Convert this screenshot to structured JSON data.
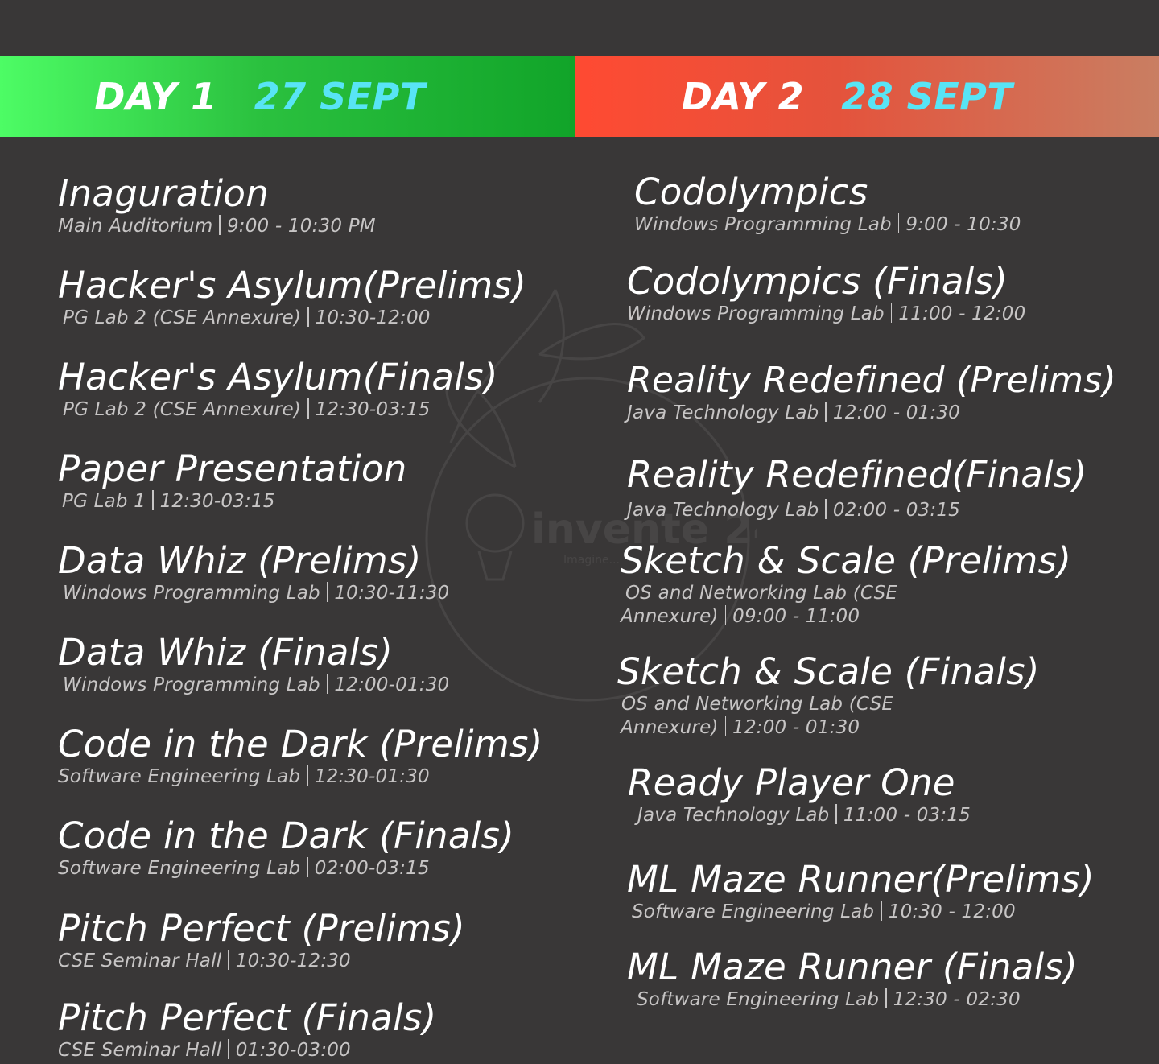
{
  "day1": {
    "day": "DAY 1",
    "date": "27 SEPT",
    "events": [
      {
        "title": "Inaguration",
        "venue": "Main Auditorium",
        "time": "9:00 - 10:30 PM"
      },
      {
        "title": "Hacker's Asylum(Prelims)",
        "venue": "PG Lab 2 (CSE Annexure)",
        "time": "10:30-12:00"
      },
      {
        "title": "Hacker's Asylum(Finals)",
        "venue": "PG Lab 2 (CSE Annexure)",
        "time": "12:30-03:15"
      },
      {
        "title": "Paper Presentation",
        "venue": "PG Lab 1",
        "time": "12:30-03:15"
      },
      {
        "title": "Data Whiz (Prelims)",
        "venue": "Windows Programming Lab",
        "time": "10:30-11:30"
      },
      {
        "title": "Data Whiz (Finals)",
        "venue": "Windows Programming Lab",
        "time": "12:00-01:30"
      },
      {
        "title": "Code in the Dark (Prelims)",
        "venue": "Software Engineering Lab",
        "time": "12:30-01:30"
      },
      {
        "title": "Code in the Dark (Finals)",
        "venue": "Software Engineering Lab",
        "time": "02:00-03:15"
      },
      {
        "title": "Pitch Perfect (Prelims)",
        "venue": "CSE Seminar Hall",
        "time": "10:30-12:30"
      },
      {
        "title": "Pitch Perfect (Finals)",
        "venue": "CSE Seminar Hall",
        "time": "01:30-03:00"
      }
    ]
  },
  "day2": {
    "day": "DAY 2",
    "date": "28 SEPT",
    "events": [
      {
        "title": "Codolympics",
        "venue": "Windows Programming Lab",
        "time": "9:00 - 10:30"
      },
      {
        "title": "Codolympics (Finals)",
        "venue": "Windows Programming Lab",
        "time": "11:00 - 12:00"
      },
      {
        "title": "Reality Redefined (Prelims)",
        "venue": "Java Technology Lab",
        "time": "12:00 - 01:30"
      },
      {
        "title": "Reality Redefined(Finals)",
        "venue": "Java Technology Lab",
        "time": "02:00 - 03:15"
      },
      {
        "title": "Sketch & Scale (Prelims)",
        "venue_line1": "OS and Networking Lab (CSE",
        "venue_line2": "Annexure)",
        "time": "09:00 - 11:00"
      },
      {
        "title": "Sketch & Scale (Finals)",
        "venue_line1": "OS and Networking Lab (CSE",
        "venue_line2": "Annexure)",
        "time": "12:00 - 01:30"
      },
      {
        "title": "Ready Player One",
        "venue": "Java Technology Lab",
        "time": "11:00 - 03:15"
      },
      {
        "title": "ML Maze Runner(Prelims)",
        "venue": "Software Engineering Lab",
        "time": "10:30 - 12:00"
      },
      {
        "title": "ML Maze Runner (Finals)",
        "venue": "Software Engineering Lab",
        "time": "12:30 - 02:30"
      }
    ]
  },
  "watermark": {
    "text": "invente 24",
    "tagline": "Imagine..."
  },
  "colors": {
    "background": "#393737",
    "date_accent": "#58e4f5",
    "day1_gradient_start": "#4dfc65",
    "day1_gradient_end": "#11a429",
    "day2_gradient_start": "#ff4a32",
    "day2_gradient_end": "#c97e62"
  }
}
